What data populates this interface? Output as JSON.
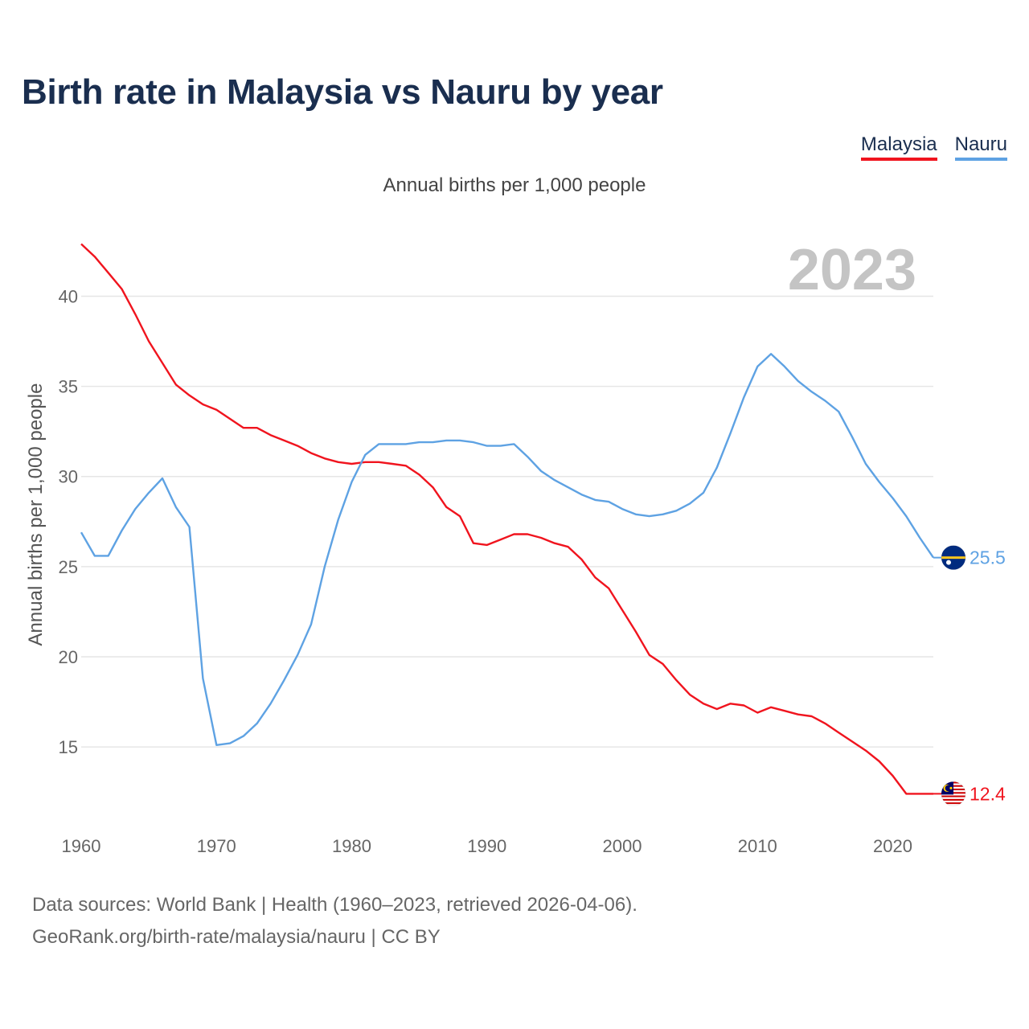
{
  "title": "Birth rate in Malaysia vs Nauru by year",
  "subtitle": "Annual births per 1,000 people",
  "legend": [
    {
      "name": "Malaysia",
      "color": "#f0141e"
    },
    {
      "name": "Nauru",
      "color": "#5ea2e3"
    }
  ],
  "source": {
    "line1": "Data sources: World Bank | Health (1960–2023, retrieved 2026-04-06).",
    "line2": "GeoRank.org/birth-rate/malaysia/nauru | CC BY"
  },
  "chart_data": {
    "type": "line",
    "title": "Birth rate in Malaysia vs Nauru by year",
    "ylabel": "Annual births per 1,000 people",
    "xlabel": "",
    "year_label": "2023",
    "xlim": [
      1960,
      2023
    ],
    "ylim": [
      10.5,
      43.5
    ],
    "x_ticks": [
      1960,
      1970,
      1980,
      1990,
      2000,
      2010,
      2020
    ],
    "y_ticks": [
      15,
      20,
      25,
      30,
      35,
      40
    ],
    "grid": true,
    "x": [
      1960,
      1961,
      1962,
      1963,
      1964,
      1965,
      1966,
      1967,
      1968,
      1969,
      1970,
      1971,
      1972,
      1973,
      1974,
      1975,
      1976,
      1977,
      1978,
      1979,
      1980,
      1981,
      1982,
      1983,
      1984,
      1985,
      1986,
      1987,
      1988,
      1989,
      1990,
      1991,
      1992,
      1993,
      1994,
      1995,
      1996,
      1997,
      1998,
      1999,
      2000,
      2001,
      2002,
      2003,
      2004,
      2005,
      2006,
      2007,
      2008,
      2009,
      2010,
      2011,
      2012,
      2013,
      2014,
      2015,
      2016,
      2017,
      2018,
      2019,
      2020,
      2021,
      2022,
      2023
    ],
    "series": [
      {
        "name": "Malaysia",
        "color": "#f0141e",
        "end_label": "12.4",
        "values": [
          42.9,
          42.2,
          41.3,
          40.4,
          39.0,
          37.5,
          36.3,
          35.1,
          34.5,
          34.0,
          33.7,
          33.2,
          32.7,
          32.7,
          32.3,
          32.0,
          31.7,
          31.3,
          31.0,
          30.8,
          30.7,
          30.8,
          30.8,
          30.7,
          30.6,
          30.1,
          29.4,
          28.3,
          27.8,
          26.3,
          26.2,
          26.5,
          26.8,
          26.8,
          26.6,
          26.3,
          26.1,
          25.4,
          24.4,
          23.8,
          22.6,
          21.4,
          20.1,
          19.6,
          18.7,
          17.9,
          17.4,
          17.1,
          17.4,
          17.3,
          16.9,
          17.2,
          17.0,
          16.8,
          16.7,
          16.3,
          15.8,
          15.3,
          14.8,
          14.2,
          13.4,
          12.4,
          12.4,
          12.4
        ]
      },
      {
        "name": "Nauru",
        "color": "#5ea2e3",
        "end_label": "25.5",
        "values": [
          26.9,
          25.6,
          25.6,
          27.0,
          28.2,
          29.1,
          29.9,
          28.3,
          27.2,
          18.8,
          15.1,
          15.2,
          15.6,
          16.3,
          17.4,
          18.7,
          20.1,
          21.8,
          25.0,
          27.6,
          29.7,
          31.2,
          31.8,
          31.8,
          31.8,
          31.9,
          31.9,
          32.0,
          32.0,
          31.9,
          31.7,
          31.7,
          31.8,
          31.1,
          30.3,
          29.8,
          29.4,
          29.0,
          28.7,
          28.6,
          28.2,
          27.9,
          27.8,
          27.9,
          28.1,
          28.5,
          29.1,
          30.5,
          32.4,
          34.4,
          36.1,
          36.8,
          36.1,
          35.3,
          34.7,
          34.2,
          33.6,
          32.2,
          30.7,
          29.7,
          28.8,
          27.8,
          26.6,
          25.5
        ]
      }
    ]
  }
}
